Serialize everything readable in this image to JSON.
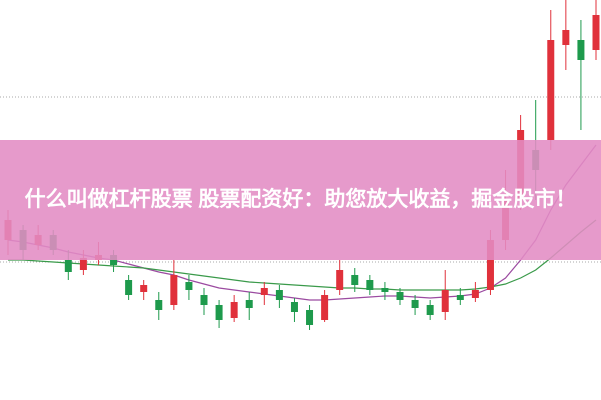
{
  "chart_data": {
    "type": "candlestick",
    "title": "什么叫做杠杆股票 股票配资好：助您放大收益，掘金股市！",
    "ylim": [
      0,
      400
    ],
    "up_color": "#e0313b",
    "down_color": "#1e9a4c",
    "candles": [
      [
        160,
        180,
        145,
        190
      ],
      [
        170,
        150,
        140,
        175
      ],
      [
        155,
        165,
        150,
        175
      ],
      [
        165,
        150,
        145,
        170
      ],
      [
        140,
        128,
        120,
        150
      ],
      [
        130,
        142,
        125,
        150
      ],
      [
        140,
        145,
        135,
        158
      ],
      [
        145,
        135,
        128,
        150
      ],
      [
        120,
        105,
        100,
        125
      ],
      [
        108,
        115,
        100,
        120
      ],
      [
        100,
        90,
        80,
        108
      ],
      [
        95,
        125,
        90,
        140
      ],
      [
        118,
        110,
        100,
        125
      ],
      [
        105,
        95,
        85,
        112
      ],
      [
        95,
        80,
        72,
        100
      ],
      [
        82,
        98,
        78,
        105
      ],
      [
        100,
        92,
        80,
        108
      ],
      [
        105,
        112,
        95,
        118
      ],
      [
        110,
        100,
        92,
        115
      ],
      [
        98,
        88,
        78,
        102
      ],
      [
        90,
        75,
        70,
        95
      ],
      [
        80,
        105,
        78,
        110
      ],
      [
        110,
        130,
        105,
        140
      ],
      [
        125,
        115,
        108,
        132
      ],
      [
        120,
        110,
        105,
        125
      ],
      [
        112,
        108,
        100,
        118
      ],
      [
        108,
        100,
        95,
        112
      ],
      [
        100,
        92,
        85,
        105
      ],
      [
        95,
        85,
        80,
        100
      ],
      [
        88,
        110,
        80,
        130
      ],
      [
        105,
        100,
        95,
        112
      ],
      [
        102,
        110,
        98,
        118
      ],
      [
        110,
        160,
        105,
        170
      ],
      [
        160,
        200,
        150,
        230
      ],
      [
        200,
        270,
        190,
        285
      ],
      [
        250,
        230,
        200,
        300
      ],
      [
        260,
        360,
        250,
        390
      ],
      [
        355,
        370,
        330,
        400
      ],
      [
        360,
        340,
        270,
        380
      ],
      [
        350,
        385,
        340,
        400
      ]
    ],
    "series": [
      {
        "color": "#9b4aa0",
        "values": [
          160,
          158,
          155,
          152,
          148,
          145,
          142,
          140,
          136,
          132,
          128,
          125,
          120,
          116,
          112,
          110,
          108,
          106,
          104,
          102,
          100,
          100,
          101,
          102,
          103,
          104,
          104,
          103,
          102,
          103,
          104,
          106,
          112,
          122,
          140,
          160,
          190,
          215,
          235,
          255
        ]
      },
      {
        "color": "#3a9a4a",
        "values": [
          140,
          140,
          139,
          138,
          137,
          136,
          135,
          134,
          133,
          132,
          130,
          128,
          126,
          124,
          122,
          120,
          118,
          117,
          116,
          115,
          114,
          113,
          112,
          112,
          111,
          111,
          110,
          110,
          110,
          110,
          110,
          111,
          113,
          116,
          122,
          130,
          142,
          155,
          168,
          180
        ]
      }
    ]
  }
}
